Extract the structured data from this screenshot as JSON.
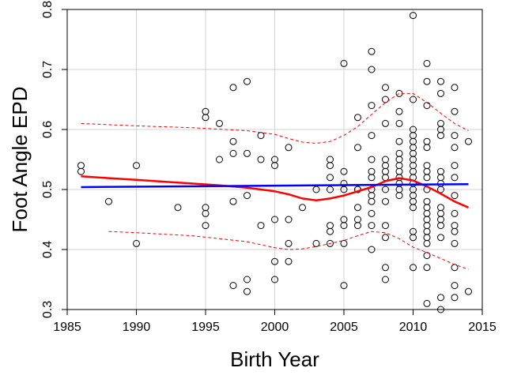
{
  "chart_data": {
    "type": "scatter",
    "title": "",
    "xlabel": "Birth Year",
    "ylabel": "Foot Angle EPD",
    "xlim": [
      1985,
      2015
    ],
    "ylim": [
      0.3,
      0.8
    ],
    "xticks": [
      1985,
      1990,
      1995,
      2000,
      2005,
      2010,
      2015
    ],
    "yticks": [
      0.3,
      0.4,
      0.5,
      0.6,
      0.7,
      0.8
    ],
    "grid": true,
    "colors": {
      "points": "#000000",
      "smooth": "#ff0000",
      "linear": "#0000ff",
      "band": "#ff0000",
      "grid": "#d3d3d3"
    },
    "points": [
      [
        1986,
        0.54
      ],
      [
        1986,
        0.53
      ],
      [
        1988,
        0.48
      ],
      [
        1990,
        0.54
      ],
      [
        1990,
        0.41
      ],
      [
        1993,
        0.47
      ],
      [
        1995,
        0.63
      ],
      [
        1995,
        0.62
      ],
      [
        1995,
        0.47
      ],
      [
        1995,
        0.46
      ],
      [
        1995,
        0.44
      ],
      [
        1996,
        0.61
      ],
      [
        1996,
        0.55
      ],
      [
        1997,
        0.67
      ],
      [
        1997,
        0.58
      ],
      [
        1997,
        0.56
      ],
      [
        1997,
        0.48
      ],
      [
        1997,
        0.34
      ],
      [
        1998,
        0.68
      ],
      [
        1998,
        0.56
      ],
      [
        1998,
        0.49
      ],
      [
        1998,
        0.35
      ],
      [
        1998,
        0.33
      ],
      [
        1999,
        0.59
      ],
      [
        1999,
        0.55
      ],
      [
        1999,
        0.44
      ],
      [
        2000,
        0.55
      ],
      [
        2000,
        0.54
      ],
      [
        2000,
        0.45
      ],
      [
        2000,
        0.38
      ],
      [
        2000,
        0.35
      ],
      [
        2001,
        0.57
      ],
      [
        2001,
        0.45
      ],
      [
        2001,
        0.41
      ],
      [
        2001,
        0.38
      ],
      [
        2002,
        0.47
      ],
      [
        2003,
        0.5
      ],
      [
        2003,
        0.41
      ],
      [
        2004,
        0.55
      ],
      [
        2004,
        0.54
      ],
      [
        2004,
        0.52
      ],
      [
        2004,
        0.5
      ],
      [
        2004,
        0.44
      ],
      [
        2004,
        0.43
      ],
      [
        2004,
        0.41
      ],
      [
        2005,
        0.71
      ],
      [
        2005,
        0.53
      ],
      [
        2005,
        0.51
      ],
      [
        2005,
        0.5
      ],
      [
        2005,
        0.45
      ],
      [
        2005,
        0.44
      ],
      [
        2005,
        0.41
      ],
      [
        2005,
        0.34
      ],
      [
        2006,
        0.62
      ],
      [
        2006,
        0.57
      ],
      [
        2006,
        0.5
      ],
      [
        2006,
        0.5
      ],
      [
        2006,
        0.47
      ],
      [
        2006,
        0.45
      ],
      [
        2006,
        0.44
      ],
      [
        2007,
        0.73
      ],
      [
        2007,
        0.7
      ],
      [
        2007,
        0.64
      ],
      [
        2007,
        0.59
      ],
      [
        2007,
        0.55
      ],
      [
        2007,
        0.53
      ],
      [
        2007,
        0.52
      ],
      [
        2007,
        0.5
      ],
      [
        2007,
        0.49
      ],
      [
        2007,
        0.48
      ],
      [
        2007,
        0.46
      ],
      [
        2007,
        0.44
      ],
      [
        2007,
        0.4
      ],
      [
        2008,
        0.67
      ],
      [
        2008,
        0.65
      ],
      [
        2008,
        0.61
      ],
      [
        2008,
        0.55
      ],
      [
        2008,
        0.54
      ],
      [
        2008,
        0.53
      ],
      [
        2008,
        0.52
      ],
      [
        2008,
        0.5
      ],
      [
        2008,
        0.48
      ],
      [
        2008,
        0.44
      ],
      [
        2008,
        0.42
      ],
      [
        2008,
        0.37
      ],
      [
        2008,
        0.35
      ],
      [
        2009,
        0.66
      ],
      [
        2009,
        0.63
      ],
      [
        2009,
        0.61
      ],
      [
        2009,
        0.58
      ],
      [
        2009,
        0.56
      ],
      [
        2009,
        0.55
      ],
      [
        2009,
        0.54
      ],
      [
        2009,
        0.53
      ],
      [
        2009,
        0.52
      ],
      [
        2009,
        0.51
      ],
      [
        2009,
        0.5
      ],
      [
        2009,
        0.49
      ],
      [
        2010,
        0.79
      ],
      [
        2010,
        0.65
      ],
      [
        2010,
        0.6
      ],
      [
        2010,
        0.59
      ],
      [
        2010,
        0.58
      ],
      [
        2010,
        0.57
      ],
      [
        2010,
        0.56
      ],
      [
        2010,
        0.55
      ],
      [
        2010,
        0.54
      ],
      [
        2010,
        0.53
      ],
      [
        2010,
        0.52
      ],
      [
        2010,
        0.51
      ],
      [
        2010,
        0.5
      ],
      [
        2010,
        0.49
      ],
      [
        2010,
        0.48
      ],
      [
        2010,
        0.47
      ],
      [
        2010,
        0.43
      ],
      [
        2010,
        0.42
      ],
      [
        2010,
        0.37
      ],
      [
        2011,
        0.71
      ],
      [
        2011,
        0.68
      ],
      [
        2011,
        0.64
      ],
      [
        2011,
        0.58
      ],
      [
        2011,
        0.57
      ],
      [
        2011,
        0.54
      ],
      [
        2011,
        0.53
      ],
      [
        2011,
        0.52
      ],
      [
        2011,
        0.5
      ],
      [
        2011,
        0.48
      ],
      [
        2011,
        0.47
      ],
      [
        2011,
        0.46
      ],
      [
        2011,
        0.45
      ],
      [
        2011,
        0.44
      ],
      [
        2011,
        0.43
      ],
      [
        2011,
        0.42
      ],
      [
        2011,
        0.41
      ],
      [
        2011,
        0.39
      ],
      [
        2011,
        0.37
      ],
      [
        2011,
        0.31
      ],
      [
        2012,
        0.68
      ],
      [
        2012,
        0.66
      ],
      [
        2012,
        0.61
      ],
      [
        2012,
        0.6
      ],
      [
        2012,
        0.59
      ],
      [
        2012,
        0.53
      ],
      [
        2012,
        0.52
      ],
      [
        2012,
        0.51
      ],
      [
        2012,
        0.5
      ],
      [
        2012,
        0.47
      ],
      [
        2012,
        0.46
      ],
      [
        2012,
        0.45
      ],
      [
        2012,
        0.44
      ],
      [
        2012,
        0.42
      ],
      [
        2012,
        0.32
      ],
      [
        2012,
        0.3
      ],
      [
        2013,
        0.67
      ],
      [
        2013,
        0.63
      ],
      [
        2013,
        0.59
      ],
      [
        2013,
        0.57
      ],
      [
        2013,
        0.54
      ],
      [
        2013,
        0.52
      ],
      [
        2013,
        0.49
      ],
      [
        2013,
        0.46
      ],
      [
        2013,
        0.44
      ],
      [
        2013,
        0.43
      ],
      [
        2013,
        0.41
      ],
      [
        2013,
        0.37
      ],
      [
        2013,
        0.34
      ],
      [
        2013,
        0.32
      ],
      [
        2014,
        0.58
      ],
      [
        2014,
        0.33
      ]
    ],
    "series": [
      {
        "name": "linear fit",
        "style": "solid",
        "x": [
          1986,
          2014
        ],
        "y": [
          0.504,
          0.509
        ]
      },
      {
        "name": "loess smooth",
        "style": "solid",
        "x": [
          1986,
          1988,
          1990,
          1992,
          1994,
          1996,
          1998,
          2000,
          2001,
          2002,
          2003,
          2004,
          2005,
          2006,
          2007,
          2008,
          2009,
          2010,
          2011,
          2012,
          2013,
          2014
        ],
        "y": [
          0.522,
          0.519,
          0.516,
          0.513,
          0.51,
          0.507,
          0.503,
          0.497,
          0.492,
          0.485,
          0.482,
          0.485,
          0.49,
          0.497,
          0.504,
          0.514,
          0.519,
          0.515,
          0.505,
          0.493,
          0.48,
          0.47
        ]
      },
      {
        "name": "upper band",
        "style": "dashed",
        "x": [
          1986,
          1990,
          1994,
          1998,
          2000,
          2001,
          2002,
          2003,
          2004,
          2005,
          2006,
          2007,
          2008,
          2009,
          2010,
          2011,
          2012,
          2013,
          2014
        ],
        "y": [
          0.61,
          0.606,
          0.603,
          0.598,
          0.592,
          0.585,
          0.579,
          0.577,
          0.58,
          0.59,
          0.605,
          0.625,
          0.645,
          0.66,
          0.66,
          0.645,
          0.627,
          0.61,
          0.598
        ]
      },
      {
        "name": "lower band",
        "style": "dashed",
        "x": [
          1988,
          1990,
          1994,
          1998,
          2000,
          2001,
          2002,
          2003,
          2004,
          2005,
          2006,
          2007,
          2008,
          2009,
          2010,
          2011,
          2012,
          2013,
          2014
        ],
        "y": [
          0.43,
          0.428,
          0.423,
          0.413,
          0.403,
          0.4,
          0.401,
          0.405,
          0.41,
          0.415,
          0.423,
          0.43,
          0.428,
          0.418,
          0.404,
          0.395,
          0.385,
          0.375,
          0.367
        ]
      }
    ]
  }
}
